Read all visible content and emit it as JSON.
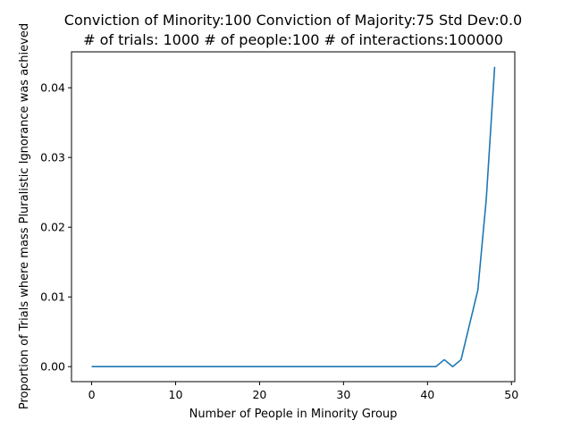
{
  "chart_data": {
    "type": "line",
    "title_line1": "Conviction of Minority:100 Conviction of Majority:75 Std Dev:0.0",
    "title_line2": "# of trials: 1000 # of people:100 # of interactions:100000",
    "xlabel": "Number of People in Minority Group",
    "ylabel": "Proportion of Trials where mass Pluralistic Ignorance was achieved",
    "xlim": [
      -2.4,
      50.4
    ],
    "ylim": [
      -0.00215,
      0.04515
    ],
    "xticks": [
      0,
      10,
      20,
      30,
      40,
      50
    ],
    "xtick_labels": [
      "0",
      "10",
      "20",
      "30",
      "40",
      "50"
    ],
    "yticks": [
      0.0,
      0.01,
      0.02,
      0.03,
      0.04
    ],
    "ytick_labels": [
      "0.00",
      "0.01",
      "0.02",
      "0.03",
      "0.04"
    ],
    "grid": false,
    "series": [
      {
        "color": "#1f77b4",
        "x": [
          0,
          1,
          2,
          3,
          4,
          5,
          6,
          7,
          8,
          9,
          10,
          11,
          12,
          13,
          14,
          15,
          16,
          17,
          18,
          19,
          20,
          21,
          22,
          23,
          24,
          25,
          26,
          27,
          28,
          29,
          30,
          31,
          32,
          33,
          34,
          35,
          36,
          37,
          38,
          39,
          40,
          41,
          42,
          43,
          44,
          45,
          46,
          47,
          48
        ],
        "y": [
          0,
          0,
          0,
          0,
          0,
          0,
          0,
          0,
          0,
          0,
          0,
          0,
          0,
          0,
          0,
          0,
          0,
          0,
          0,
          0,
          0,
          0,
          0,
          0,
          0,
          0,
          0,
          0,
          0,
          0,
          0,
          0,
          0,
          0,
          0,
          0,
          0,
          0,
          0,
          0,
          0,
          0,
          0.001,
          0,
          0.001,
          0.006,
          0.011,
          0.024,
          0.043
        ]
      }
    ]
  }
}
